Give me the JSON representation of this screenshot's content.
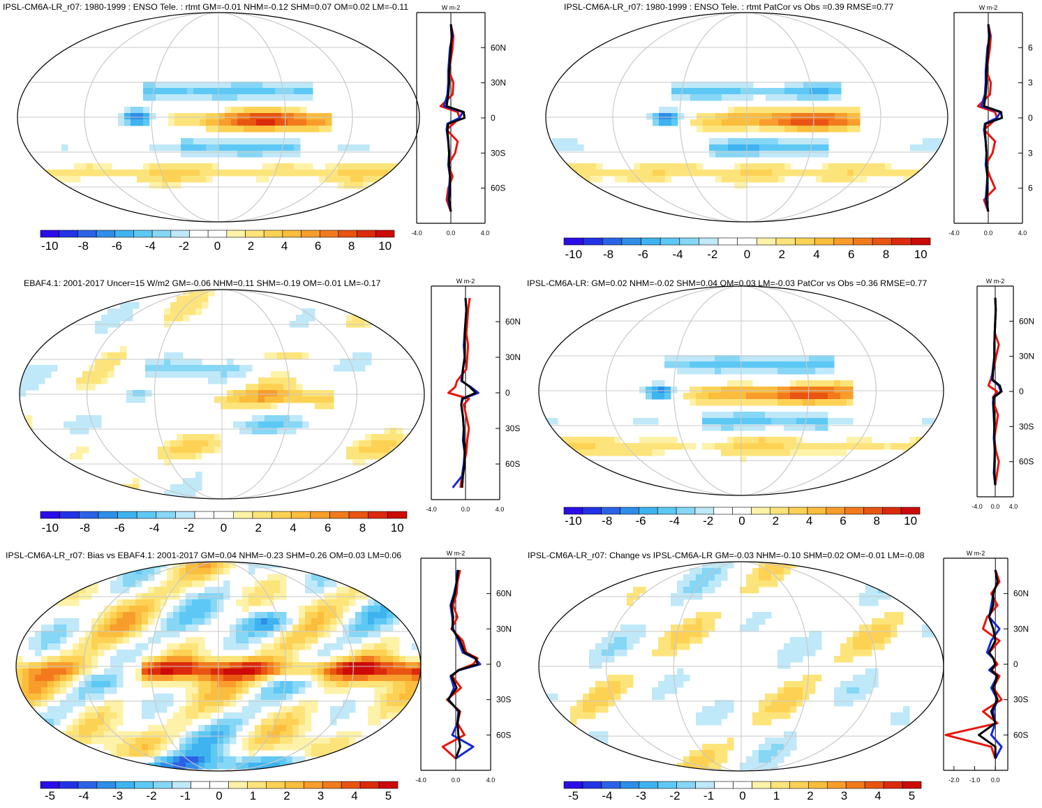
{
  "panels": [
    {
      "title": "IPSL-CM6A-LR_r07: 1980-1999 : ENSO Tele. : rtmt GM=-0.01 NHM=-0.12 SHM=0.07 OM=0.02 LM=-0.11",
      "unit": "W m-2",
      "profile_ticks_y": [
        "60N",
        "30N",
        "0",
        "30S",
        "60S"
      ],
      "profile_ticks_x": [
        "-4.0",
        "0.0",
        "4.0"
      ],
      "colorbar_labels": [
        "-10",
        "-8",
        "-6",
        "-4",
        "-2",
        "0",
        "2",
        "4",
        "6",
        "8",
        "10"
      ],
      "scheme": "enso"
    },
    {
      "title": "IPSL-CM6A-LR_r07: 1980-1999 : ENSO Tele. : rtmt PatCor vs Obs =0.39 RMSE=0.77",
      "unit": "W m-2",
      "profile_ticks_y": [
        "6",
        "3",
        "0",
        "3",
        "6"
      ],
      "profile_ticks_x": [
        "-4.0",
        "0.0",
        "4.0"
      ],
      "colorbar_labels": [
        "-10",
        "-8",
        "-6",
        "-4",
        "-2",
        "0",
        "2",
        "4",
        "6",
        "8",
        "10"
      ],
      "scheme": "enso"
    },
    {
      "title": "EBAF4.1: 2001-2017 Uncer=15 W/m2 GM=-0.06 NHM=0.11 SHM=-0.19 OM=-0.01 LM=-0.17",
      "unit": "W m-2",
      "profile_ticks_y": [
        "60N",
        "30N",
        "0",
        "30S",
        "60S"
      ],
      "profile_ticks_x": [
        "-4.0",
        "0.0",
        "4.0"
      ],
      "colorbar_labels": [
        "-10",
        "-8",
        "-6",
        "-4",
        "-2",
        "0",
        "2",
        "4",
        "6",
        "8",
        "10"
      ],
      "scheme": "obs"
    },
    {
      "title": "IPSL-CM6A-LR: GM=0.02 NHM=-0.02 SHM=0.04 OM=0.03 LM=-0.03 PatCor vs Obs =0.36 RMSE=0.77",
      "unit": "W m-2",
      "profile_ticks_y": [
        "60N",
        "30N",
        "0",
        "30S",
        "60S"
      ],
      "profile_ticks_x": [
        "-4.0",
        "0.0",
        "4.0"
      ],
      "colorbar_labels": [
        "-10",
        "-8",
        "-6",
        "-4",
        "-2",
        "0",
        "2",
        "4",
        "6",
        "8",
        "10"
      ],
      "scheme": "enso"
    },
    {
      "title": "IPSL-CM6A-LR_r07: Bias vs EBAF4.1: 2001-2017 GM=0.04 NHM=-0.23 SHM=0.26 OM=0.03 LM=0.06",
      "unit": "W m-2",
      "profile_ticks_y": [
        "60N",
        "30N",
        "0",
        "30S",
        "60S"
      ],
      "profile_ticks_x": [
        "-4.0",
        "0.0",
        "4.0"
      ],
      "colorbar_labels": [
        "-5",
        "-4",
        "-3",
        "-2",
        "-1",
        "0",
        "1",
        "2",
        "3",
        "4",
        "5"
      ],
      "scheme": "bias"
    },
    {
      "title": "IPSL-CM6A-LR_r07: Change vs IPSL-CM6A-LR GM=-0.03 NHM=-0.10 SHM=0.02 OM=-0.01 LM=-0.08",
      "unit": "W m-2",
      "profile_ticks_y": [
        "60N",
        "30N",
        "0",
        "30S",
        "60S"
      ],
      "profile_ticks_x": [
        "-2.0",
        "-1.0",
        "0.0"
      ],
      "colorbar_labels": [
        "-5",
        "-4",
        "-3",
        "-2",
        "-1",
        "0",
        "1",
        "2",
        "3",
        "4",
        "5"
      ],
      "scheme": "change"
    }
  ],
  "palette": [
    "#2b0de8",
    "#2233e6",
    "#2a63e6",
    "#2e8ee8",
    "#3fb3f0",
    "#5ec8f4",
    "#86d6f6",
    "#bfe8f8",
    "#ffffff",
    "#ffffff",
    "#fdf2a8",
    "#fde47a",
    "#fdd254",
    "#fbbd3c",
    "#f89d2c",
    "#f27a1c",
    "#e95412",
    "#dc2a0c",
    "#cc0a08"
  ],
  "series_colors": {
    "model": "#e8140c",
    "obs": "#1428d2",
    "ensemble": "#000000"
  },
  "chart_data": [
    {
      "type": "heatmap",
      "title": "IPSL-CM6A-LR_r07: 1980-1999 : ENSO Tele. : rtmt GM=-0.01 NHM=-0.12 SHM=0.07 OM=0.02 LM=-0.11",
      "colorbar_range": [
        -11,
        11
      ],
      "profile": {
        "ylim": [
          -90,
          90
        ],
        "xlim": [
          -4,
          4
        ],
        "lat": [
          80,
          70,
          60,
          50,
          40,
          30,
          20,
          10,
          5,
          0,
          -5,
          -10,
          -20,
          -30,
          -40,
          -50,
          -60,
          -70,
          -80
        ],
        "series": [
          {
            "values": [
              0,
              0.3,
              0.2,
              0,
              -0.2,
              0.3,
              0.2,
              -1.2,
              0.8,
              1.0,
              0.3,
              -0.5,
              0.8,
              0.5,
              -0.3,
              0.2,
              -0.3,
              -0.5,
              0
            ]
          },
          {
            "values": [
              0,
              0.2,
              -0.1,
              -0.2,
              -0.3,
              -0.3,
              -0.4,
              -0.8,
              1.4,
              1.0,
              -0.4,
              -0.5,
              -0.3,
              -0.2,
              -0.3,
              -0.1,
              -0.2,
              -0.3,
              0
            ]
          },
          {
            "values": [
              0,
              0.1,
              0,
              -0.1,
              -0.2,
              -0.2,
              -0.3,
              -0.5,
              1.5,
              1.6,
              -0.3,
              -0.4,
              -0.3,
              -0.2,
              -0.2,
              -0.1,
              -0.1,
              -0.2,
              0
            ]
          }
        ]
      }
    },
    {
      "type": "heatmap",
      "title": "IPSL-CM6A-LR_r07: 1980-1999 : ENSO Tele. : rtmt PatCor vs Obs =0.39 RMSE=0.77",
      "colorbar_range": [
        -11,
        11
      ],
      "profile": {
        "ylim": [
          -90,
          90
        ],
        "xlim": [
          -4,
          4
        ],
        "lat": [
          80,
          70,
          60,
          50,
          40,
          30,
          20,
          10,
          5,
          0,
          -5,
          -10,
          -20,
          -30,
          -40,
          -50,
          -60,
          -70,
          -80
        ],
        "series": [
          {
            "values": [
              0,
              0.3,
              0.2,
              0,
              -0.2,
              0.3,
              0.2,
              -1.2,
              0.8,
              1.0,
              0.3,
              -0.5,
              0.8,
              0.5,
              -0.3,
              0.2,
              0.8,
              -0.5,
              0
            ]
          },
          {
            "values": [
              0,
              0.2,
              -0.1,
              -0.2,
              -0.3,
              -0.3,
              -0.4,
              -0.8,
              1.4,
              1.0,
              -0.4,
              -0.5,
              -0.3,
              -0.2,
              -0.3,
              -0.1,
              -0.2,
              -0.3,
              0
            ]
          },
          {
            "values": [
              0,
              0.1,
              0,
              -0.1,
              -0.2,
              -0.2,
              -0.3,
              -0.5,
              1.5,
              1.6,
              -0.3,
              -0.4,
              -0.3,
              -0.2,
              -0.2,
              -0.1,
              -0.1,
              -0.2,
              0
            ]
          }
        ]
      }
    },
    {
      "type": "heatmap",
      "title": "EBAF4.1: 2001-2017 Uncer=15 W/m2 GM=-0.06 NHM=0.11 SHM=-0.19 OM=-0.01 LM=-0.17",
      "colorbar_range": [
        -11,
        11
      ],
      "profile": {
        "ylim": [
          -90,
          90
        ],
        "xlim": [
          -4,
          4
        ],
        "lat": [
          80,
          70,
          60,
          50,
          40,
          30,
          20,
          10,
          5,
          0,
          -5,
          -10,
          -20,
          -30,
          -40,
          -50,
          -60,
          -70,
          -80
        ],
        "series": [
          {
            "values": [
              0.5,
              0.3,
              0.2,
              0.1,
              0.3,
              0.2,
              0.1,
              -1.0,
              -1.2,
              -2.0,
              0.4,
              -0.2,
              0.1,
              0.4,
              0.2,
              0.1,
              -0.2,
              -0.4,
              -0.6
            ]
          },
          {
            "values": [
              0,
              0.1,
              0,
              -0.1,
              -0.2,
              -0.1,
              -0.3,
              -0.5,
              0.6,
              1.5,
              -0.3,
              -0.5,
              -0.3,
              -0.2,
              -0.3,
              -0.1,
              -0.2,
              -0.4,
              -1.5
            ]
          },
          {
            "values": [
              0,
              0.1,
              0,
              -0.1,
              -0.1,
              -0.1,
              -0.3,
              -0.4,
              0.5,
              1.2,
              -0.4,
              -0.5,
              -0.3,
              -0.2,
              -0.2,
              -0.1,
              -0.1,
              -0.3,
              -0.4
            ]
          }
        ]
      }
    },
    {
      "type": "heatmap",
      "title": "IPSL-CM6A-LR: GM=0.02 NHM=-0.02 SHM=0.04 OM=0.03 LM=-0.03 PatCor vs Obs =0.36 RMSE=0.77",
      "colorbar_range": [
        -11,
        11
      ],
      "profile": {
        "ylim": [
          -90,
          90
        ],
        "xlim": [
          -4,
          4
        ],
        "lat": [
          80,
          70,
          60,
          50,
          40,
          30,
          20,
          10,
          5,
          0,
          -5,
          -10,
          -20,
          -30,
          -40,
          -50,
          -60,
          -70,
          -80
        ],
        "series": [
          {
            "values": [
              0,
              0.1,
              0,
              -0.1,
              0.8,
              0.2,
              -0.3,
              -1.0,
              -1.5,
              0.4,
              -0.5,
              -0.3,
              0.6,
              0.2,
              -0.2,
              0.1,
              0.8,
              0.4,
              0
            ]
          },
          {
            "values": [
              0,
              0.1,
              0,
              -0.1,
              -0.2,
              -0.2,
              -0.5,
              -0.8,
              0.8,
              1.2,
              -0.4,
              -0.5,
              -0.3,
              -0.2,
              -0.3,
              -0.1,
              -0.2,
              -0.3,
              0
            ]
          },
          {
            "values": [
              0,
              0.1,
              0,
              -0.1,
              -0.2,
              -0.2,
              -0.4,
              -0.6,
              1.0,
              1.4,
              -0.3,
              -0.4,
              -0.3,
              -0.2,
              -0.2,
              -0.1,
              -0.1,
              -0.2,
              0
            ]
          }
        ]
      }
    },
    {
      "type": "heatmap",
      "title": "IPSL-CM6A-LR_r07: Bias vs EBAF4.1: 2001-2017 GM=0.04 NHM=-0.23 SHM=0.26 OM=0.03 LM=0.06",
      "colorbar_range": [
        -5.5,
        5.5
      ],
      "profile": {
        "ylim": [
          -90,
          90
        ],
        "xlim": [
          -4,
          4
        ],
        "lat": [
          80,
          70,
          60,
          50,
          40,
          30,
          20,
          10,
          5,
          0,
          -5,
          -10,
          -20,
          -30,
          -40,
          -50,
          -60,
          -70,
          -80
        ],
        "series": [
          {
            "values": [
              0.5,
              0.2,
              0.1,
              -0.3,
              0.2,
              -0.5,
              0.8,
              1.2,
              2.5,
              2.0,
              0.3,
              -0.4,
              0.6,
              -1.0,
              0.5,
              0.2,
              1.0,
              -1.5,
              0
            ]
          },
          {
            "values": [
              0.2,
              0.1,
              -0.2,
              -0.6,
              -0.4,
              -0.3,
              0.3,
              0.8,
              2.2,
              2.8,
              0.4,
              -0.6,
              -0.2,
              -0.8,
              0.3,
              0.2,
              -0.4,
              2.0,
              0
            ]
          },
          {
            "values": [
              0.3,
              0.1,
              -0.1,
              -0.5,
              -0.3,
              -0.4,
              0.5,
              1.0,
              2.3,
              2.5,
              0.3,
              -0.5,
              0.1,
              -0.9,
              0.4,
              0.2,
              0.3,
              0.5,
              0
            ]
          }
        ]
      }
    },
    {
      "type": "heatmap",
      "title": "IPSL-CM6A-LR_r07: Change vs IPSL-CM6A-LR GM=-0.03 NHM=-0.10 SHM=0.02 OM=-0.01 LM=-0.08",
      "colorbar_range": [
        -5.5,
        5.5
      ],
      "profile": {
        "ylim": [
          -90,
          90
        ],
        "xlim": [
          -2.5,
          0.6
        ],
        "lat": [
          80,
          70,
          60,
          50,
          40,
          30,
          20,
          10,
          5,
          0,
          -5,
          -10,
          -20,
          -30,
          -40,
          -50,
          -60,
          -70,
          -80
        ],
        "series": [
          {
            "values": [
              0,
              0.2,
              -0.2,
              0.1,
              -0.4,
              -0.6,
              0.2,
              -0.3,
              -0.1,
              0.1,
              -0.2,
              0.2,
              -0.1,
              0.3,
              -0.6,
              0.1,
              -2.4,
              -0.2,
              0
            ]
          },
          {
            "values": [
              0,
              0.1,
              -0.1,
              -0.2,
              -0.3,
              0.2,
              -0.2,
              -0.4,
              -0.1,
              0.0,
              -0.3,
              0.1,
              -0.2,
              0.1,
              -0.1,
              0.0,
              -0.2,
              0.3,
              0
            ]
          },
          {
            "values": [
              0,
              0.1,
              -0.1,
              -0.1,
              -0.3,
              -0.1,
              0.0,
              -0.3,
              -0.1,
              0.0,
              -0.2,
              0.1,
              -0.1,
              0.1,
              -0.2,
              0.0,
              -0.8,
              0.0,
              0
            ]
          }
        ]
      }
    }
  ]
}
